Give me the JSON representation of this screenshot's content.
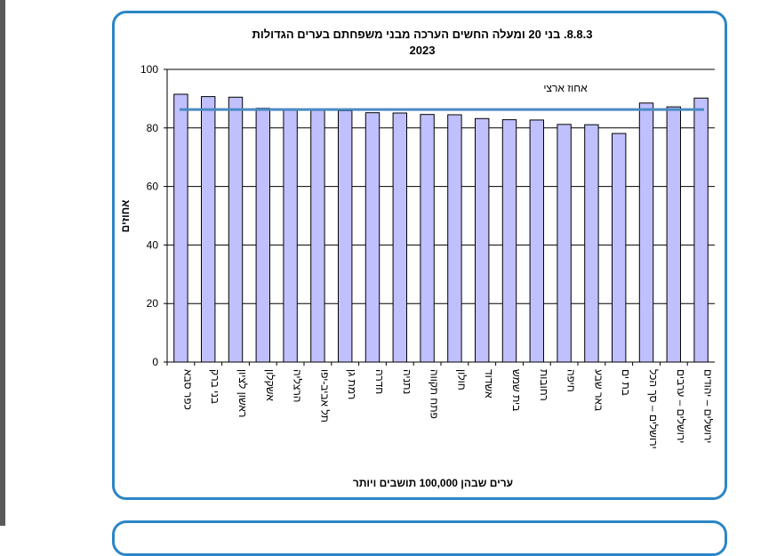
{
  "chart_data": {
    "type": "bar",
    "title": "8.8.3. בני 20 ומעלה החשים הערכה מבני משפחתם בערים הגדולות",
    "subtitle": "2023",
    "xlabel": "ערים שבהן 100,000 תושבים ויותר",
    "ylabel": "אחוזים",
    "ylim": [
      0,
      100
    ],
    "yticks": [
      "0",
      "20",
      "40",
      "60",
      "80",
      "100"
    ],
    "categories": [
      "כפר סבא",
      "בני ברק",
      "ראשון לציון",
      "אשקלון",
      "הרצליה",
      "תל אביב-יפו",
      "רמת גן",
      "חדרה",
      "נתניה",
      "פתח תקווה",
      "חולון",
      "אשדוד",
      "בית שמש",
      "רחובות",
      "חיפה",
      "באר שבע",
      "בת ים",
      "ירושלים – סך הכל",
      "ירושלים – ערבים",
      "ירושלים – יהודים"
    ],
    "values": [
      91.5,
      90.7,
      90.5,
      86.7,
      86.3,
      86.0,
      85.9,
      85.2,
      85.1,
      84.6,
      84.5,
      83.2,
      82.8,
      82.7,
      81.2,
      81.1,
      78.1,
      88.5,
      87.2,
      90.2
    ],
    "reference_line": {
      "label": "אחוז ארצי",
      "value": 86.3
    },
    "colors": {
      "bar_fill": "#c0c0ff",
      "bar_stroke": "#000000",
      "reference_line": "#4a8ac4",
      "grid": "#000000"
    }
  }
}
